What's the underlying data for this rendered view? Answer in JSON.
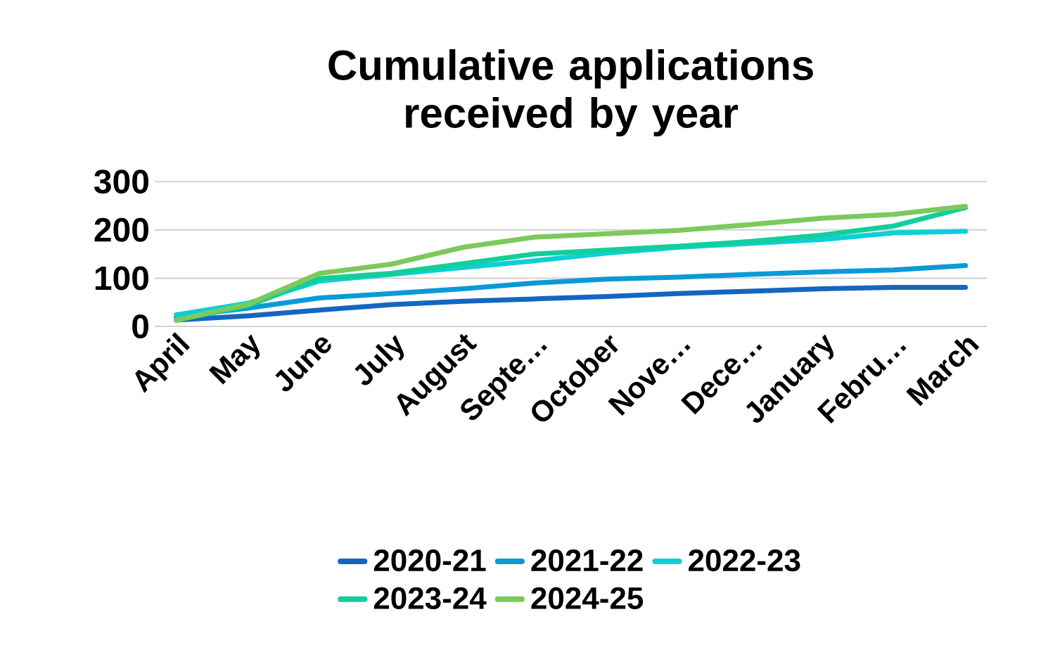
{
  "chart_data": {
    "type": "line",
    "title": "Cumulative applications received by year",
    "categories": [
      "April",
      "May",
      "June",
      "July",
      "August",
      "Septe…",
      "October",
      "Nove…",
      "Dece…",
      "January",
      "Febru…",
      "March"
    ],
    "series": [
      {
        "name": "2020-21",
        "color": "#1566c0",
        "values": [
          13,
          22,
          34,
          45,
          52,
          57,
          62,
          68,
          73,
          78,
          81,
          81
        ]
      },
      {
        "name": "2021-22",
        "color": "#0a9ad6",
        "values": [
          20,
          38,
          59,
          68,
          78,
          90,
          98,
          102,
          108,
          113,
          117,
          126
        ]
      },
      {
        "name": "2022-23",
        "color": "#0ecfd8",
        "values": [
          24,
          48,
          94,
          108,
          122,
          136,
          152,
          164,
          172,
          180,
          194,
          197
        ]
      },
      {
        "name": "2023-24",
        "color": "#12cf9a",
        "values": [
          13,
          43,
          99,
          110,
          130,
          150,
          158,
          166,
          176,
          189,
          208,
          246
        ]
      },
      {
        "name": "2024-25",
        "color": "#7cc95c",
        "values": [
          13,
          46,
          110,
          129,
          164,
          185,
          192,
          199,
          211,
          224,
          232,
          249
        ]
      }
    ],
    "ylim": [
      0,
      300
    ],
    "yticks": [
      0,
      100,
      200,
      300
    ],
    "grid": "y",
    "legend": "bottom",
    "marker": "none",
    "line_style": "solid"
  }
}
